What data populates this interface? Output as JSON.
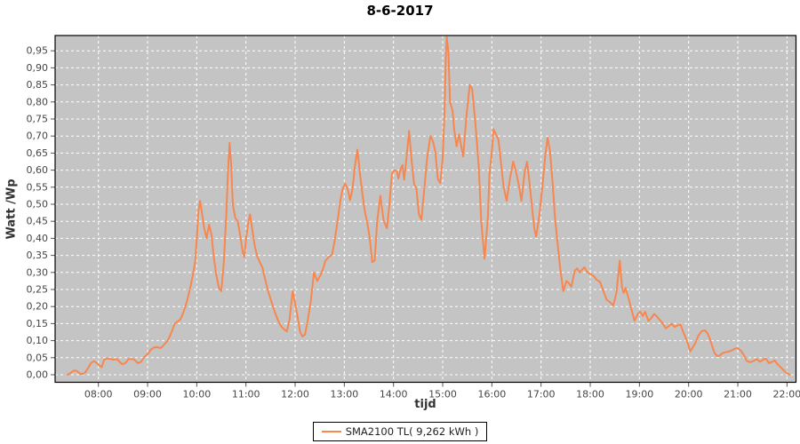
{
  "title": "8-6-2017",
  "colors": {
    "plot_bg": "#c4c4c4",
    "grid": "#ffffff",
    "series": "#f7874e",
    "tick_text": "#464646",
    "border": "#000000",
    "title_text": "#000000"
  },
  "chart_data": {
    "type": "line",
    "title": "8-6-2017",
    "xlabel": "tijd",
    "ylabel": "Watt /Wp",
    "ylim": [
      0.0,
      0.995
    ],
    "grid": "dashed-white",
    "legend_position": "bottom-center",
    "x_ticks": [
      "08:00",
      "09:00",
      "10:00",
      "11:00",
      "12:00",
      "13:00",
      "14:00",
      "15:00",
      "16:00",
      "17:00",
      "18:00",
      "19:00",
      "20:00",
      "21:00",
      "22:00"
    ],
    "y_ticks": [
      "0,00",
      "0,05",
      "0,10",
      "0,15",
      "0,20",
      "0,25",
      "0,30",
      "0,35",
      "0,40",
      "0,45",
      "0,50",
      "0,55",
      "0,60",
      "0,65",
      "0,70",
      "0,75",
      "0,80",
      "0,85",
      "0,90",
      "0,95"
    ],
    "series": [
      {
        "name": "SMA2100 TL( 9,262 kWh )",
        "color": "#f7874e",
        "points": [
          [
            "07:22",
            0.0
          ],
          [
            "07:26",
            0.005
          ],
          [
            "07:30",
            0.012
          ],
          [
            "07:33",
            0.012
          ],
          [
            "07:37",
            0.004
          ],
          [
            "07:41",
            0.002
          ],
          [
            "07:44",
            0.007
          ],
          [
            "07:48",
            0.022
          ],
          [
            "07:51",
            0.035
          ],
          [
            "07:55",
            0.04
          ],
          [
            "07:58",
            0.034
          ],
          [
            "08:01",
            0.027
          ],
          [
            "08:04",
            0.022
          ],
          [
            "08:07",
            0.044
          ],
          [
            "08:11",
            0.048
          ],
          [
            "08:15",
            0.046
          ],
          [
            "08:18",
            0.044
          ],
          [
            "08:22",
            0.046
          ],
          [
            "08:25",
            0.04
          ],
          [
            "08:29",
            0.031
          ],
          [
            "08:33",
            0.034
          ],
          [
            "08:37",
            0.046
          ],
          [
            "08:41",
            0.046
          ],
          [
            "08:44",
            0.044
          ],
          [
            "08:48",
            0.034
          ],
          [
            "08:52",
            0.038
          ],
          [
            "08:56",
            0.052
          ],
          [
            "09:00",
            0.06
          ],
          [
            "09:04",
            0.074
          ],
          [
            "09:08",
            0.08
          ],
          [
            "09:12",
            0.081
          ],
          [
            "09:16",
            0.078
          ],
          [
            "09:20",
            0.088
          ],
          [
            "09:24",
            0.098
          ],
          [
            "09:27",
            0.112
          ],
          [
            "09:30",
            0.13
          ],
          [
            "09:33",
            0.15
          ],
          [
            "09:36",
            0.155
          ],
          [
            "09:40",
            0.162
          ],
          [
            "09:44",
            0.185
          ],
          [
            "09:48",
            0.215
          ],
          [
            "09:52",
            0.255
          ],
          [
            "09:55",
            0.29
          ],
          [
            "09:58",
            0.33
          ],
          [
            "10:00",
            0.4
          ],
          [
            "10:02",
            0.48
          ],
          [
            "10:04",
            0.51
          ],
          [
            "10:06",
            0.48
          ],
          [
            "10:09",
            0.43
          ],
          [
            "10:12",
            0.4
          ],
          [
            "10:15",
            0.44
          ],
          [
            "10:18",
            0.41
          ],
          [
            "10:21",
            0.34
          ],
          [
            "10:24",
            0.29
          ],
          [
            "10:27",
            0.255
          ],
          [
            "10:30",
            0.245
          ],
          [
            "10:33",
            0.33
          ],
          [
            "10:36",
            0.47
          ],
          [
            "10:38",
            0.59
          ],
          [
            "10:40",
            0.68
          ],
          [
            "10:42",
            0.615
          ],
          [
            "10:44",
            0.5
          ],
          [
            "10:47",
            0.46
          ],
          [
            "10:50",
            0.45
          ],
          [
            "10:53",
            0.41
          ],
          [
            "10:56",
            0.36
          ],
          [
            "10:58",
            0.345
          ],
          [
            "11:00",
            0.395
          ],
          [
            "11:03",
            0.45
          ],
          [
            "11:05",
            0.47
          ],
          [
            "11:08",
            0.42
          ],
          [
            "11:11",
            0.375
          ],
          [
            "11:14",
            0.345
          ],
          [
            "11:17",
            0.33
          ],
          [
            "11:20",
            0.315
          ],
          [
            "11:23",
            0.285
          ],
          [
            "11:27",
            0.245
          ],
          [
            "11:31",
            0.215
          ],
          [
            "11:35",
            0.185
          ],
          [
            "11:39",
            0.16
          ],
          [
            "11:43",
            0.142
          ],
          [
            "11:47",
            0.132
          ],
          [
            "11:50",
            0.127
          ],
          [
            "11:53",
            0.16
          ],
          [
            "11:57",
            0.245
          ],
          [
            "12:00",
            0.21
          ],
          [
            "12:03",
            0.17
          ],
          [
            "12:06",
            0.125
          ],
          [
            "12:09",
            0.112
          ],
          [
            "12:12",
            0.118
          ],
          [
            "12:15",
            0.155
          ],
          [
            "12:19",
            0.215
          ],
          [
            "12:23",
            0.3
          ],
          [
            "12:27",
            0.275
          ],
          [
            "12:31",
            0.292
          ],
          [
            "12:34",
            0.31
          ],
          [
            "12:37",
            0.335
          ],
          [
            "12:41",
            0.345
          ],
          [
            "12:45",
            0.352
          ],
          [
            "12:48",
            0.39
          ],
          [
            "12:52",
            0.455
          ],
          [
            "12:55",
            0.51
          ],
          [
            "12:58",
            0.545
          ],
          [
            "13:01",
            0.56
          ],
          [
            "13:04",
            0.545
          ],
          [
            "13:07",
            0.512
          ],
          [
            "13:10",
            0.545
          ],
          [
            "13:13",
            0.615
          ],
          [
            "13:16",
            0.66
          ],
          [
            "13:19",
            0.59
          ],
          [
            "13:22",
            0.53
          ],
          [
            "13:25",
            0.48
          ],
          [
            "13:28",
            0.445
          ],
          [
            "13:31",
            0.4
          ],
          [
            "13:34",
            0.33
          ],
          [
            "13:37",
            0.335
          ],
          [
            "13:40",
            0.45
          ],
          [
            "13:44",
            0.525
          ],
          [
            "13:48",
            0.452
          ],
          [
            "13:52",
            0.43
          ],
          [
            "13:55",
            0.5
          ],
          [
            "13:58",
            0.59
          ],
          [
            "14:01",
            0.6
          ],
          [
            "14:04",
            0.598
          ],
          [
            "14:06",
            0.575
          ],
          [
            "14:09",
            0.605
          ],
          [
            "14:11",
            0.615
          ],
          [
            "14:13",
            0.572
          ],
          [
            "14:16",
            0.64
          ],
          [
            "14:19",
            0.715
          ],
          [
            "14:22",
            0.63
          ],
          [
            "14:25",
            0.56
          ],
          [
            "14:28",
            0.545
          ],
          [
            "14:31",
            0.47
          ],
          [
            "14:34",
            0.455
          ],
          [
            "14:38",
            0.555
          ],
          [
            "14:41",
            0.635
          ],
          [
            "14:45",
            0.7
          ],
          [
            "14:48",
            0.685
          ],
          [
            "14:51",
            0.655
          ],
          [
            "14:54",
            0.575
          ],
          [
            "14:57",
            0.562
          ],
          [
            "15:00",
            0.635
          ],
          [
            "15:02",
            0.76
          ],
          [
            "15:04",
            0.94
          ],
          [
            "15:05",
            0.99
          ],
          [
            "15:07",
            0.945
          ],
          [
            "15:09",
            0.8
          ],
          [
            "15:12",
            0.775
          ],
          [
            "15:14",
            0.72
          ],
          [
            "15:17",
            0.67
          ],
          [
            "15:20",
            0.705
          ],
          [
            "15:23",
            0.665
          ],
          [
            "15:25",
            0.64
          ],
          [
            "15:29",
            0.76
          ],
          [
            "15:33",
            0.85
          ],
          [
            "15:36",
            0.838
          ],
          [
            "15:40",
            0.735
          ],
          [
            "15:44",
            0.61
          ],
          [
            "15:47",
            0.45
          ],
          [
            "15:51",
            0.34
          ],
          [
            "15:55",
            0.46
          ],
          [
            "15:57",
            0.585
          ],
          [
            "16:00",
            0.655
          ],
          [
            "16:02",
            0.72
          ],
          [
            "16:05",
            0.705
          ],
          [
            "16:08",
            0.69
          ],
          [
            "16:11",
            0.625
          ],
          [
            "16:14",
            0.555
          ],
          [
            "16:18",
            0.51
          ],
          [
            "16:22",
            0.575
          ],
          [
            "16:26",
            0.625
          ],
          [
            "16:30",
            0.59
          ],
          [
            "16:33",
            0.555
          ],
          [
            "16:36",
            0.51
          ],
          [
            "16:40",
            0.595
          ],
          [
            "16:43",
            0.625
          ],
          [
            "16:46",
            0.56
          ],
          [
            "16:49",
            0.49
          ],
          [
            "16:52",
            0.425
          ],
          [
            "16:54",
            0.405
          ],
          [
            "16:58",
            0.47
          ],
          [
            "17:02",
            0.56
          ],
          [
            "17:05",
            0.64
          ],
          [
            "17:08",
            0.695
          ],
          [
            "17:11",
            0.655
          ],
          [
            "17:14",
            0.565
          ],
          [
            "17:17",
            0.46
          ],
          [
            "17:20",
            0.39
          ],
          [
            "17:23",
            0.32
          ],
          [
            "17:27",
            0.245
          ],
          [
            "17:31",
            0.275
          ],
          [
            "17:34",
            0.268
          ],
          [
            "17:37",
            0.258
          ],
          [
            "17:41",
            0.305
          ],
          [
            "17:44",
            0.312
          ],
          [
            "17:47",
            0.3
          ],
          [
            "17:50",
            0.308
          ],
          [
            "17:53",
            0.315
          ],
          [
            "17:56",
            0.302
          ],
          [
            "18:00",
            0.295
          ],
          [
            "18:04",
            0.29
          ],
          [
            "18:08",
            0.278
          ],
          [
            "18:12",
            0.272
          ],
          [
            "18:16",
            0.245
          ],
          [
            "18:20",
            0.22
          ],
          [
            "18:24",
            0.213
          ],
          [
            "18:28",
            0.203
          ],
          [
            "18:32",
            0.24
          ],
          [
            "18:36",
            0.335
          ],
          [
            "18:39",
            0.25
          ],
          [
            "18:41",
            0.24
          ],
          [
            "18:43",
            0.255
          ],
          [
            "18:47",
            0.222
          ],
          [
            "18:50",
            0.195
          ],
          [
            "18:54",
            0.158
          ],
          [
            "18:58",
            0.178
          ],
          [
            "19:01",
            0.185
          ],
          [
            "19:04",
            0.172
          ],
          [
            "19:07",
            0.185
          ],
          [
            "19:11",
            0.157
          ],
          [
            "19:14",
            0.165
          ],
          [
            "19:18",
            0.178
          ],
          [
            "19:21",
            0.172
          ],
          [
            "19:25",
            0.16
          ],
          [
            "19:28",
            0.152
          ],
          [
            "19:32",
            0.136
          ],
          [
            "19:36",
            0.143
          ],
          [
            "19:39",
            0.15
          ],
          [
            "19:43",
            0.14
          ],
          [
            "19:47",
            0.145
          ],
          [
            "19:50",
            0.148
          ],
          [
            "19:53",
            0.128
          ],
          [
            "19:57",
            0.105
          ],
          [
            "20:00",
            0.085
          ],
          [
            "20:02",
            0.068
          ],
          [
            "20:05",
            0.08
          ],
          [
            "20:08",
            0.092
          ],
          [
            "20:12",
            0.115
          ],
          [
            "20:16",
            0.128
          ],
          [
            "20:20",
            0.13
          ],
          [
            "20:23",
            0.122
          ],
          [
            "20:26",
            0.105
          ],
          [
            "20:29",
            0.082
          ],
          [
            "20:32",
            0.062
          ],
          [
            "20:35",
            0.055
          ],
          [
            "20:38",
            0.056
          ],
          [
            "20:41",
            0.063
          ],
          [
            "20:45",
            0.066
          ],
          [
            "20:49",
            0.068
          ],
          [
            "20:53",
            0.072
          ],
          [
            "20:57",
            0.077
          ],
          [
            "21:00",
            0.078
          ],
          [
            "21:04",
            0.07
          ],
          [
            "21:08",
            0.055
          ],
          [
            "21:11",
            0.04
          ],
          [
            "21:15",
            0.037
          ],
          [
            "21:19",
            0.04
          ],
          [
            "21:23",
            0.046
          ],
          [
            "21:27",
            0.038
          ],
          [
            "21:31",
            0.044
          ],
          [
            "21:34",
            0.048
          ],
          [
            "21:38",
            0.034
          ],
          [
            "21:42",
            0.038
          ],
          [
            "21:45",
            0.042
          ],
          [
            "21:48",
            0.032
          ],
          [
            "21:51",
            0.025
          ],
          [
            "21:55",
            0.015
          ],
          [
            "21:58",
            0.008
          ],
          [
            "22:01",
            0.003
          ],
          [
            "22:03",
            0.0
          ]
        ]
      }
    ]
  }
}
